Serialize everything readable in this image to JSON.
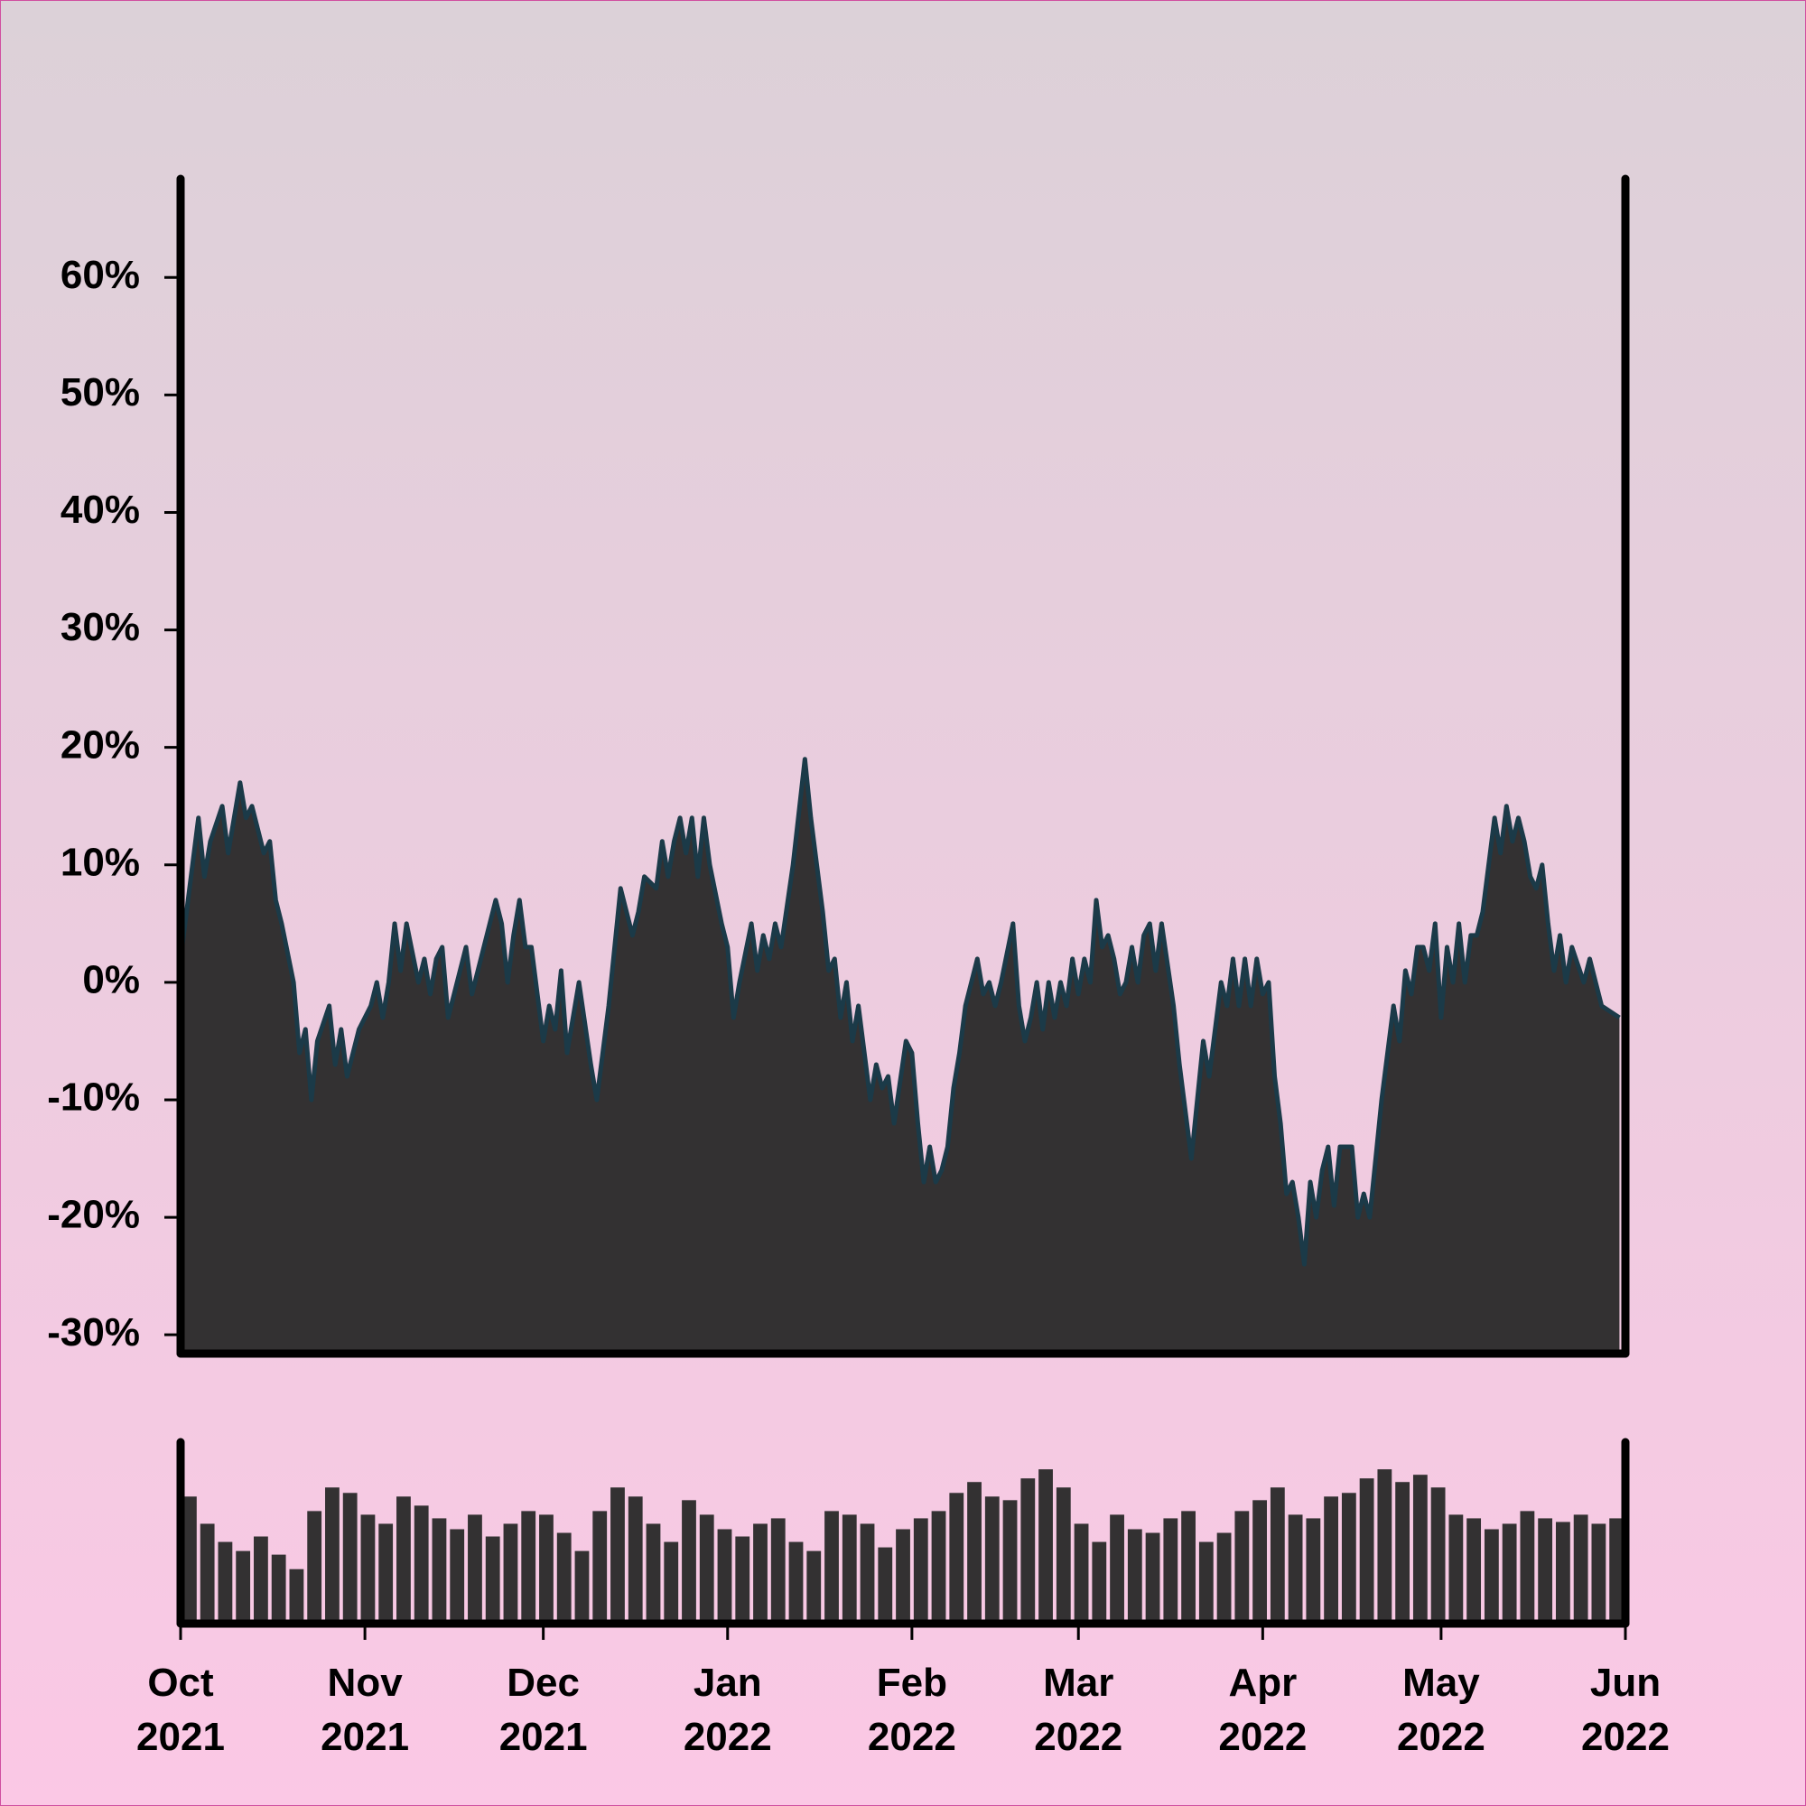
{
  "chart_data": [
    {
      "type": "area",
      "color": "#333132",
      "line_color": "#1b3a48",
      "xlim": [
        0,
        243
      ],
      "ylim": [
        -31.6,
        68.4
      ],
      "yticks": [
        {
          "value": -30,
          "label": "-30%"
        },
        {
          "value": -20,
          "label": "-20%"
        },
        {
          "value": -10,
          "label": "-10%"
        },
        {
          "value": 0,
          "label": "0%"
        },
        {
          "value": 10,
          "label": "10%"
        },
        {
          "value": 20,
          "label": "20%"
        },
        {
          "value": 30,
          "label": "30%"
        },
        {
          "value": 40,
          "label": "40%"
        },
        {
          "value": 50,
          "label": "50%"
        },
        {
          "value": 60,
          "label": "60%"
        }
      ],
      "x": [
        0,
        2,
        3,
        4,
        5,
        7,
        8,
        10,
        11,
        12,
        14,
        15,
        16,
        17,
        19,
        20,
        21,
        22,
        23,
        25,
        26,
        27,
        28,
        30,
        32,
        33,
        34,
        35,
        36,
        37,
        38,
        40,
        41,
        42,
        43,
        44,
        45,
        47,
        48,
        49,
        51,
        53,
        54,
        55,
        56,
        57,
        58,
        59,
        61,
        62,
        63,
        64,
        65,
        66,
        67,
        69,
        70,
        72,
        74,
        75,
        76,
        77,
        78,
        80,
        81,
        82,
        83,
        84,
        85,
        86,
        87,
        88,
        89,
        91,
        92,
        93,
        94,
        96,
        97,
        98,
        99,
        100,
        101,
        103,
        105,
        106,
        107,
        108,
        109,
        110,
        111,
        112,
        113,
        114,
        116,
        117,
        118,
        119,
        120,
        122,
        123,
        124,
        125,
        126,
        127,
        128,
        129,
        130,
        131,
        132,
        134,
        135,
        136,
        137,
        138,
        140,
        141,
        142,
        143,
        144,
        145,
        146,
        147,
        148,
        149,
        150,
        151,
        152,
        153,
        154,
        155,
        156,
        157,
        158,
        159,
        160,
        161,
        162,
        163,
        164,
        165,
        167,
        168,
        170,
        172,
        173,
        175,
        176,
        177,
        178,
        179,
        180,
        181,
        182,
        183,
        184,
        185,
        186,
        187,
        188,
        189,
        190,
        191,
        192,
        193,
        194,
        195,
        196,
        197,
        198,
        199,
        200,
        202,
        204,
        205,
        206,
        207,
        208,
        209,
        210,
        211,
        212,
        213,
        214,
        215,
        216,
        217,
        218,
        219,
        220,
        221,
        222,
        223,
        224,
        225,
        226,
        227,
        228,
        229,
        230,
        231,
        232,
        233,
        234,
        236,
        237,
        239,
        242
      ],
      "values": [
        2,
        10,
        14,
        9,
        12,
        15,
        11,
        17,
        14,
        15,
        11,
        12,
        7,
        5,
        0,
        -6,
        -4,
        -10,
        -5,
        -2,
        -7,
        -4,
        -8,
        -4,
        -2,
        0,
        -3,
        0,
        5,
        1,
        5,
        0,
        2,
        -1,
        2,
        3,
        -3,
        1,
        3,
        -1,
        3,
        7,
        5,
        0,
        4,
        7,
        3,
        3,
        -5,
        -2,
        -4,
        1,
        -6,
        -3,
        0,
        -7,
        -10,
        -2,
        8,
        6,
        4,
        6,
        9,
        8,
        12,
        9,
        12,
        14,
        11,
        14,
        9,
        14,
        10,
        5,
        3,
        -3,
        0,
        5,
        1,
        4,
        2,
        5,
        3,
        10,
        19,
        14,
        10,
        6,
        1,
        2,
        -3,
        0,
        -5,
        -2,
        -10,
        -7,
        -9,
        -8,
        -12,
        -5,
        -6,
        -12,
        -17,
        -14,
        -17,
        -16,
        -14,
        -9,
        -6,
        -2,
        2,
        -1,
        0,
        -2,
        0,
        5,
        -2,
        -5,
        -3,
        0,
        -4,
        0,
        -3,
        0,
        -2,
        2,
        -1,
        2,
        0,
        7,
        3,
        4,
        2,
        -1,
        0,
        3,
        0,
        4,
        5,
        1,
        5,
        -2,
        -7,
        -15,
        -5,
        -8,
        0,
        -2,
        2,
        -2,
        2,
        -2,
        2,
        -1,
        0,
        -8,
        -12,
        -18,
        -17,
        -20,
        -24,
        -17,
        -20,
        -16,
        -14,
        -19,
        -14,
        -14,
        -14,
        -20,
        -18,
        -20,
        -10,
        -2,
        -5,
        1,
        -1,
        3,
        3,
        1,
        5,
        -3,
        3,
        0,
        5,
        0,
        4,
        4,
        6,
        10,
        14,
        11,
        15,
        12,
        14,
        12,
        9,
        8,
        10,
        5,
        1,
        4,
        0,
        3,
        0,
        2,
        -2,
        -3
      ]
    },
    {
      "type": "bar",
      "color": "#333132",
      "xlim": [
        0,
        243
      ],
      "ylim": [
        0,
        100
      ],
      "xticks": [
        {
          "value": 0,
          "label": "Oct 2021"
        },
        {
          "value": 31,
          "label": "Nov 2021"
        },
        {
          "value": 61,
          "label": "Dec 2021"
        },
        {
          "value": 92,
          "label": "Jan 2022"
        },
        {
          "value": 123,
          "label": "Feb 2022"
        },
        {
          "value": 151,
          "label": "Mar 2022"
        },
        {
          "value": 182,
          "label": "Apr 2022"
        },
        {
          "value": 212,
          "label": "May 2022"
        },
        {
          "value": 243,
          "label": "Jun 2022"
        }
      ],
      "x": [
        0,
        3,
        6,
        9,
        12,
        15,
        18,
        21,
        24,
        27,
        30,
        33,
        36,
        39,
        42,
        45,
        48,
        51,
        54,
        57,
        60,
        63,
        66,
        69,
        72,
        75,
        78,
        81,
        84,
        87,
        90,
        93,
        96,
        99,
        102,
        105,
        108,
        111,
        114,
        117,
        120,
        123,
        126,
        129,
        132,
        135,
        138,
        141,
        144,
        147,
        150,
        153,
        156,
        159,
        162,
        165,
        168,
        171,
        174,
        177,
        180,
        183,
        186,
        189,
        192,
        195,
        198,
        201,
        204,
        207,
        210,
        213,
        216,
        219,
        222,
        225,
        228,
        231,
        234,
        237,
        240
      ],
      "values": [
        70,
        55,
        45,
        40,
        48,
        38,
        30,
        62,
        75,
        72,
        60,
        55,
        70,
        65,
        58,
        52,
        60,
        48,
        55,
        62,
        60,
        50,
        40,
        62,
        75,
        70,
        55,
        45,
        68,
        60,
        52,
        48,
        55,
        58,
        45,
        40,
        62,
        60,
        55,
        42,
        52,
        58,
        62,
        72,
        78,
        70,
        68,
        80,
        85,
        75,
        55,
        45,
        60,
        52,
        50,
        58,
        62,
        45,
        50,
        62,
        68,
        75,
        60,
        58,
        70,
        72,
        80,
        85,
        78,
        82,
        75,
        60,
        58,
        52,
        55,
        62,
        58,
        56,
        60,
        55,
        58
      ]
    }
  ]
}
